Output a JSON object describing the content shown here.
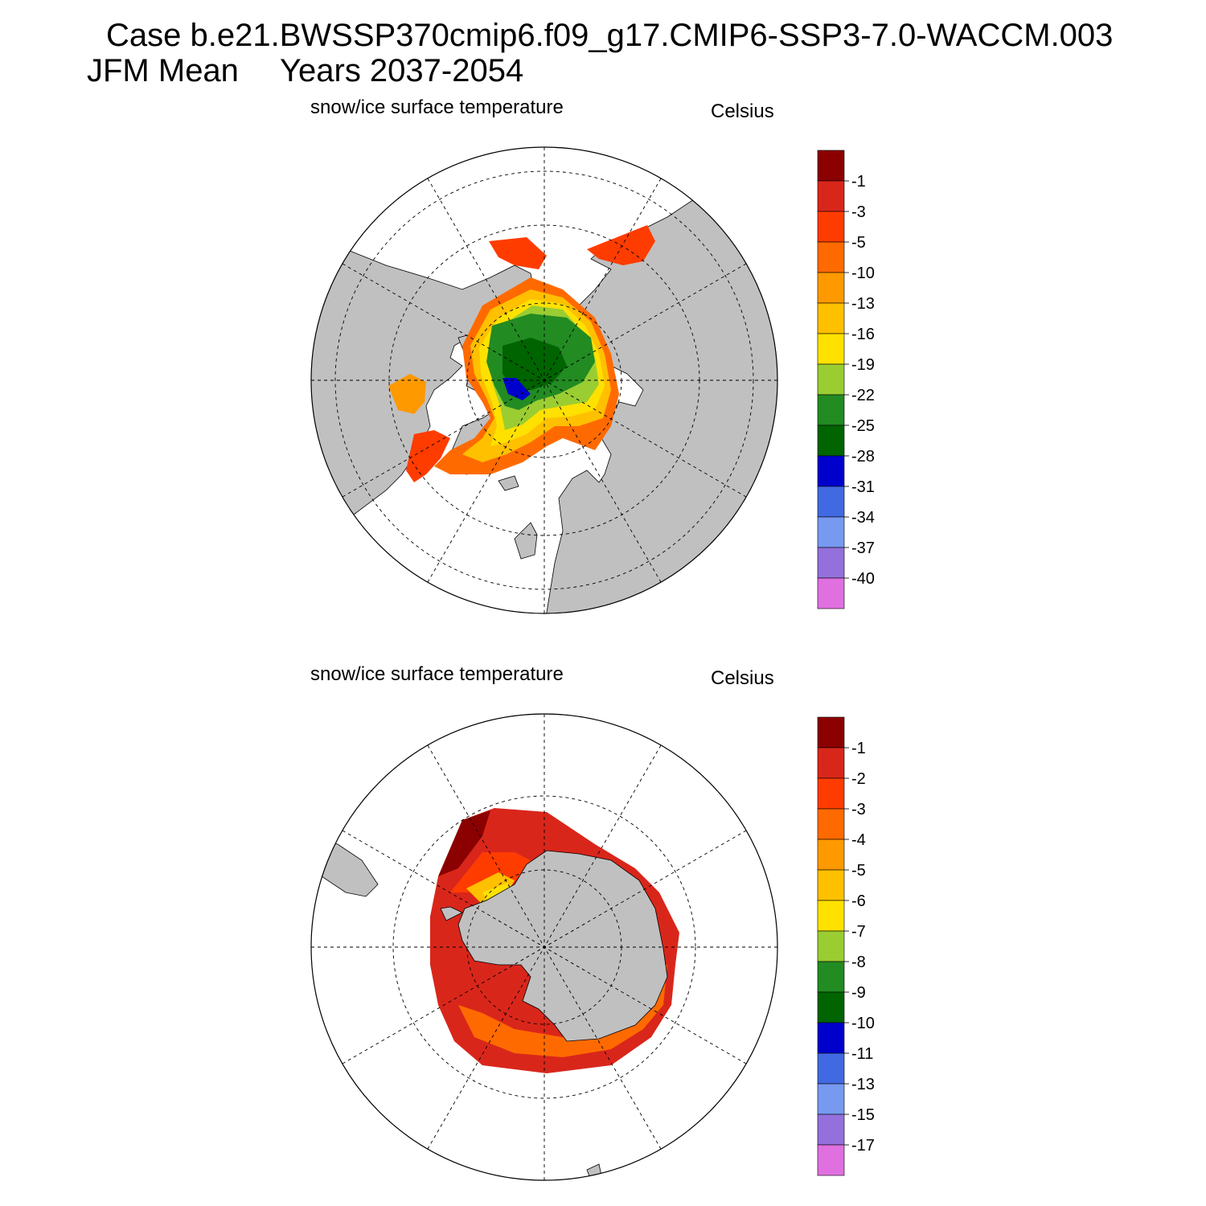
{
  "header": {
    "case_title": "Case b.e21.BWSSP370cmip6.f09_g17.CMIP6-SSP3-7.0-WACCM.003",
    "period": "JFM Mean",
    "years": "Years 2037-2054"
  },
  "colors": {
    "land": "#c0c0c0",
    "ocean": "#ffffff",
    "palette": [
      "#8b0000",
      "#d9261b",
      "#ff3c00",
      "#ff6a00",
      "#ff9900",
      "#ffc000",
      "#ffe100",
      "#9acd32",
      "#228b22",
      "#006400",
      "#0000cd",
      "#4169e1",
      "#7799f0",
      "#9370db",
      "#e070e0"
    ]
  },
  "panels": [
    {
      "id": "north",
      "title": "snow/ice surface temperature",
      "units": "Celsius",
      "hemisphere": "Arctic",
      "colorbar_labels": [
        "-1",
        "-3",
        "-5",
        "-10",
        "-13",
        "-16",
        "-19",
        "-22",
        "-25",
        "-28",
        "-31",
        "-34",
        "-37",
        "-40"
      ]
    },
    {
      "id": "south",
      "title": "snow/ice surface temperature",
      "units": "Celsius",
      "hemisphere": "Antarctic",
      "colorbar_labels": [
        "-1",
        "-2",
        "-3",
        "-4",
        "-5",
        "-6",
        "-7",
        "-8",
        "-9",
        "-10",
        "-11",
        "-13",
        "-15",
        "-17"
      ]
    }
  ]
}
